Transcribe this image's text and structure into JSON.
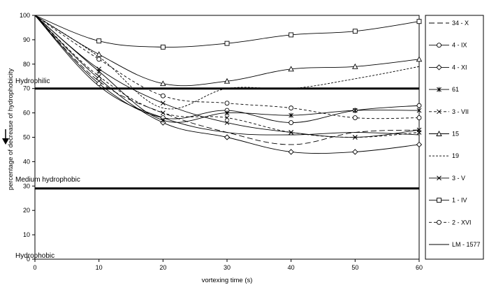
{
  "chart_data": {
    "type": "line",
    "xlabel": "vortexing time (s)",
    "ylabel": "percentage of decrease of hydrophobicity",
    "x": [
      0,
      10,
      20,
      30,
      40,
      50,
      60
    ],
    "xlim": [
      0,
      60
    ],
    "ylim": [
      0,
      100
    ],
    "x_ticks": [
      0,
      10,
      20,
      30,
      40,
      50,
      60
    ],
    "y_ticks": [
      0,
      10,
      20,
      30,
      40,
      50,
      60,
      70,
      80,
      90,
      100
    ],
    "grid": false,
    "legend_position": "right",
    "thresholds": [
      {
        "y": 70,
        "label": "Hydrophilic"
      },
      {
        "y": 29,
        "label": "Medium hydrophobic"
      }
    ],
    "region_labels": {
      "hydrophilic": "Hydrophilic",
      "medium": "Medium hydrophobic",
      "hydrophobic": "Hydrophobic"
    },
    "series": [
      {
        "name": "34 - X",
        "style": "longdash",
        "marker": "none",
        "values": [
          100,
          73,
          60,
          52,
          47,
          52,
          53
        ]
      },
      {
        "name": "4 - IX",
        "style": "solid",
        "marker": "circle",
        "values": [
          100,
          72,
          58,
          61,
          56,
          61,
          63
        ]
      },
      {
        "name": "4 - XI",
        "style": "solid",
        "marker": "diamond",
        "values": [
          100,
          74,
          56,
          50,
          44,
          44,
          47
        ]
      },
      {
        "name": "61",
        "style": "solid",
        "marker": "star",
        "values": [
          100,
          77,
          57,
          60,
          59,
          61,
          61
        ]
      },
      {
        "name": "3 - VII",
        "style": "dash",
        "marker": "x",
        "values": [
          100,
          75,
          60,
          58,
          52,
          50,
          52
        ]
      },
      {
        "name": "15",
        "style": "solid",
        "marker": "triangle",
        "values": [
          100,
          84,
          72,
          73,
          78,
          79,
          82
        ]
      },
      {
        "name": "19",
        "style": "shortdash",
        "marker": "none",
        "values": [
          100,
          83,
          62,
          70,
          70,
          74,
          79
        ]
      },
      {
        "name": "3 - V",
        "style": "solid",
        "marker": "x",
        "values": [
          100,
          78,
          64,
          56,
          52,
          50,
          53
        ]
      },
      {
        "name": "1 - IV",
        "style": "solid",
        "marker": "square",
        "values": [
          100,
          89.5,
          87,
          88.5,
          92,
          93.5,
          97.5
        ]
      },
      {
        "name": "2 - XVI",
        "style": "dash",
        "marker": "circle",
        "values": [
          100,
          82,
          67,
          64,
          62,
          58,
          58
        ]
      },
      {
        "name": "LM - 1577",
        "style": "solid",
        "marker": "none",
        "values": [
          100,
          71,
          58,
          52,
          51,
          52,
          51
        ]
      }
    ]
  }
}
